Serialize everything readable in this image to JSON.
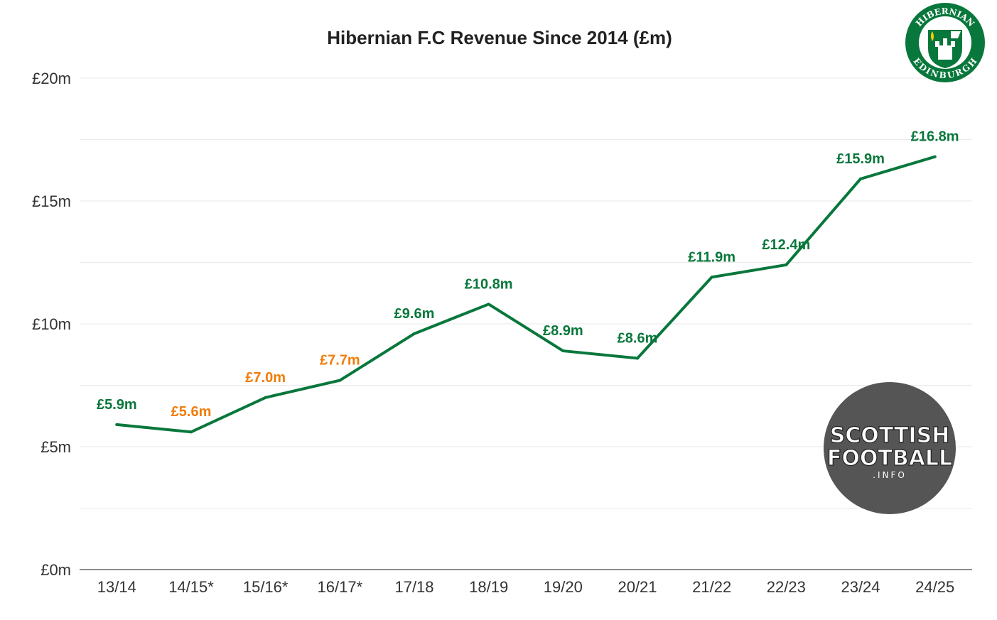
{
  "chart_data": {
    "type": "line",
    "title": "Hibernian F.C Revenue Since 2014 (£m)",
    "xlabel": "",
    "ylabel": "",
    "categories": [
      "13/14",
      "14/15*",
      "15/16*",
      "16/17*",
      "17/18",
      "18/19",
      "19/20",
      "20/21",
      "21/22",
      "22/23",
      "23/24",
      "24/25"
    ],
    "series": [
      {
        "name": "Revenue",
        "color": "#08773b",
        "values": [
          5.9,
          5.6,
          7.0,
          7.7,
          9.6,
          10.8,
          8.9,
          8.6,
          11.9,
          12.4,
          15.9,
          16.8
        ]
      }
    ],
    "data_labels": [
      "£5.9m",
      "£5.6m",
      "£7.0m",
      "£7.7m",
      "£9.6m",
      "£10.8m",
      "£8.9m",
      "£8.6m",
      "£11.9m",
      "£12.4m",
      "£15.9m",
      "£16.8m"
    ],
    "label_colors": [
      "#08773b",
      "#f07d0b",
      "#f07d0b",
      "#f07d0b",
      "#08773b",
      "#08773b",
      "#08773b",
      "#08773b",
      "#08773b",
      "#08773b",
      "#08773b",
      "#08773b"
    ],
    "ylim": [
      0,
      20
    ],
    "yticks": [
      0,
      5,
      10,
      15,
      20
    ],
    "ytick_labels": [
      "£0m",
      "£5m",
      "£10m",
      "£15m",
      "£20m"
    ],
    "minor_grid": [
      2.5,
      7.5,
      12.5,
      17.5
    ],
    "grid": true,
    "legend": "none"
  },
  "logos": {
    "club": {
      "top_text": "HIBERNIAN",
      "bottom_text": "EDINBURGH",
      "year_left": "18",
      "year_right": "75",
      "color": "#08773b"
    },
    "watermark": {
      "line1": "SCOTTISH",
      "line2": "FOOTBALL",
      "line3": ".INFO",
      "color": "#555555"
    }
  }
}
